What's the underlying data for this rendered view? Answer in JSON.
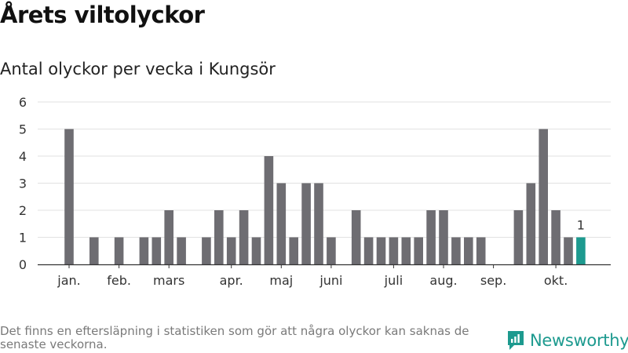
{
  "page": {
    "title": "Årets viltolyckor",
    "subtitle": "Antal olyckor per vecka i Kungsör",
    "footnote": "Det finns en eftersläpning i statistiken som gör att några olyckor kan saknas de senaste veckorna.",
    "brand": {
      "name": "Newsworthy",
      "icon": "newsworthy-logo-icon"
    }
  },
  "colors": {
    "bar": "#6e6d72",
    "highlight": "#1d9a8f",
    "grid": "#e2e2e2",
    "axis": "#333333"
  },
  "chart_data": {
    "type": "bar",
    "title": "Antal olyckor per vecka i Kungsör",
    "xlabel": "",
    "ylabel": "",
    "ylim": [
      0,
      6
    ],
    "yticks": [
      0,
      1,
      2,
      3,
      4,
      5,
      6
    ],
    "grid": true,
    "categories": [
      "1",
      "2",
      "3",
      "4",
      "5",
      "6",
      "7",
      "8",
      "9",
      "10",
      "11",
      "12",
      "13",
      "14",
      "15",
      "16",
      "17",
      "18",
      "19",
      "20",
      "21",
      "22",
      "23",
      "24",
      "25",
      "26",
      "27",
      "28",
      "29",
      "30",
      "31",
      "32",
      "33",
      "34",
      "35",
      "36",
      "37",
      "38",
      "39",
      "40",
      "41",
      "42",
      "43",
      "44",
      "45"
    ],
    "values": [
      5,
      0,
      1,
      0,
      1,
      0,
      1,
      1,
      2,
      1,
      0,
      1,
      2,
      1,
      2,
      1,
      4,
      3,
      1,
      3,
      3,
      1,
      0,
      2,
      1,
      1,
      1,
      1,
      1,
      2,
      2,
      1,
      1,
      1,
      0,
      0,
      2,
      3,
      5,
      2,
      1,
      1,
      0,
      0,
      0
    ],
    "highlight_index": 41,
    "highlight_label": "1",
    "month_labels": [
      {
        "label": "jan.",
        "week": 1
      },
      {
        "label": "feb.",
        "week": 5
      },
      {
        "label": "mars",
        "week": 9
      },
      {
        "label": "apr.",
        "week": 14
      },
      {
        "label": "maj",
        "week": 18
      },
      {
        "label": "juni",
        "week": 22
      },
      {
        "label": "juli",
        "week": 27
      },
      {
        "label": "aug.",
        "week": 31
      },
      {
        "label": "sep.",
        "week": 35
      },
      {
        "label": "okt.",
        "week": 40
      }
    ]
  }
}
